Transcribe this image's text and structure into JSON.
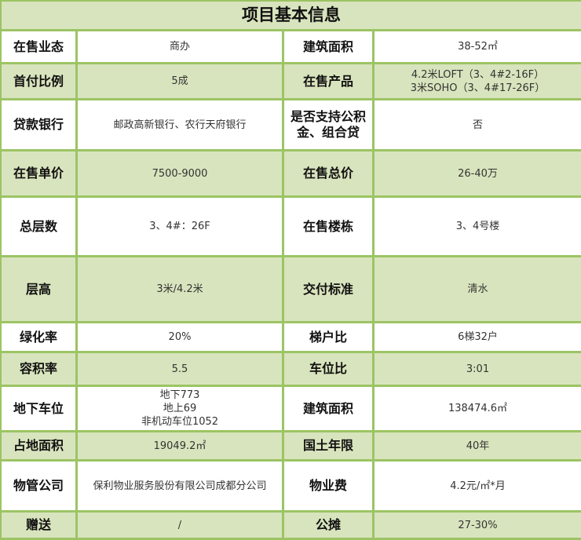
{
  "title": "项目基本信息",
  "rows": [
    {
      "k1": "在售业态",
      "v1": [
        "商办"
      ],
      "k2": "建筑面积",
      "v2": [
        "38-52㎡"
      ]
    },
    {
      "k1": "首付比例",
      "v1": [
        "5成"
      ],
      "k2": "在售产品",
      "v2": [
        "4.2米LOFT（3、4#2-16F）",
        "3米SOHO（3、4#17-26F）"
      ]
    },
    {
      "k1": "贷款银行",
      "v1": [
        "邮政高新银行、农行天府银行"
      ],
      "k2": "是否支持公积金、组合贷",
      "v2": [
        "否"
      ]
    },
    {
      "k1": "在售单价",
      "v1": [
        "7500-9000"
      ],
      "k2": "在售总价",
      "v2": [
        "26-40万"
      ]
    },
    {
      "k1": "总层数",
      "v1": [
        "3、4#：26F"
      ],
      "k2": "在售楼栋",
      "v2": [
        "3、4号楼"
      ]
    },
    {
      "k1": "层高",
      "v1": [
        "3米/4.2米"
      ],
      "k2": "交付标准",
      "v2": [
        "清水"
      ]
    },
    {
      "k1": "绿化率",
      "v1": [
        "20%"
      ],
      "k2": "梯户比",
      "v2": [
        "6梯32户"
      ]
    },
    {
      "k1": "容积率",
      "v1": [
        "5.5"
      ],
      "k2": "车位比",
      "v2": [
        "3:01"
      ]
    },
    {
      "k1": "地下车位",
      "v1": [
        "地下773",
        "地上69",
        "非机动车位1052"
      ],
      "k2": "建筑面积",
      "v2": [
        "138474.6㎡"
      ]
    },
    {
      "k1": "占地面积",
      "v1": [
        "19049.2㎡"
      ],
      "k2": "国土年限",
      "v2": [
        "40年"
      ]
    },
    {
      "k1": "物管公司",
      "v1": [
        "保利物业服务股份有限公司成都分公司"
      ],
      "k2": "物业费",
      "v2": [
        "4.2元/㎡*月"
      ]
    },
    {
      "k1": "赠送",
      "v1": [
        "/"
      ],
      "k2": "公摊",
      "v2": [
        "27-30%"
      ]
    }
  ]
}
